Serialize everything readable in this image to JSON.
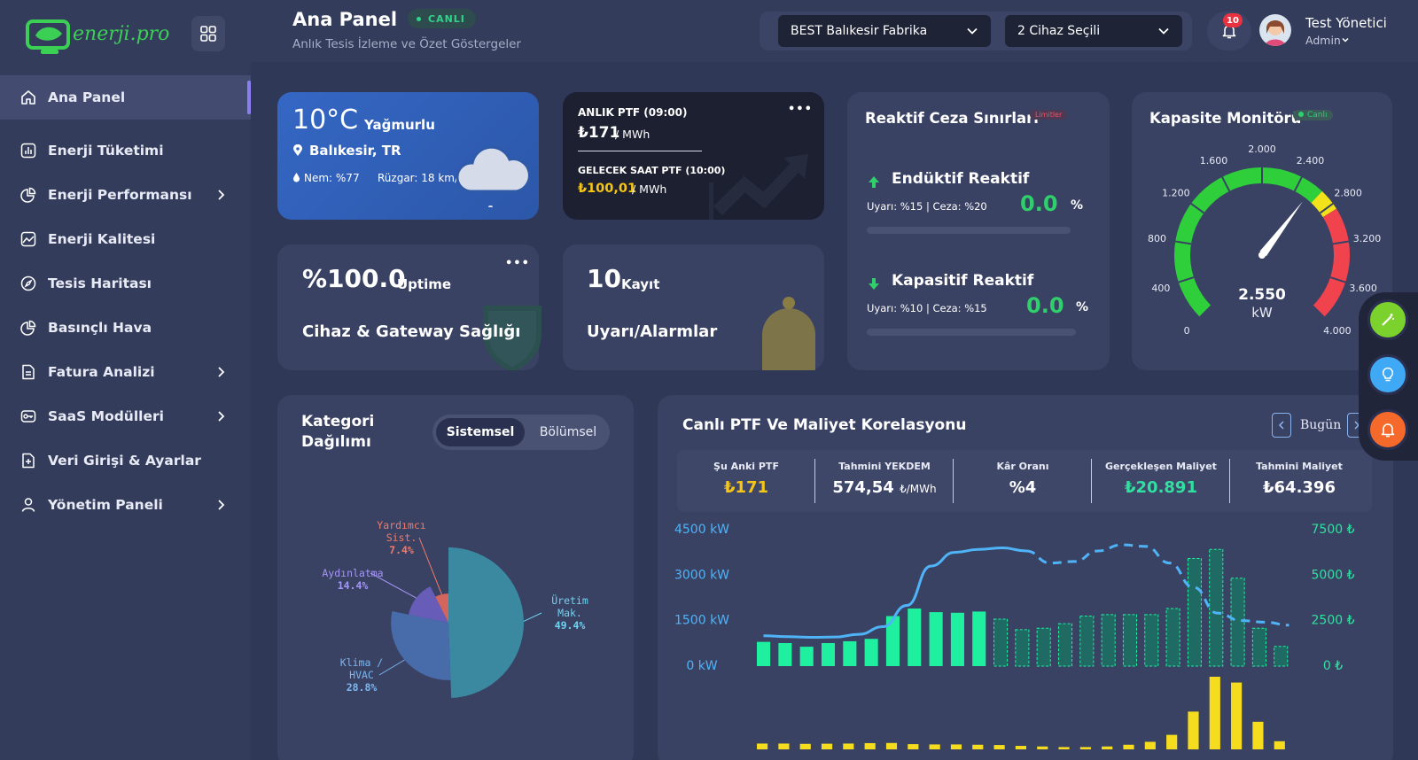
{
  "sidebar": {
    "logo_text": "enerji.pro",
    "items": [
      {
        "label": "Ana Panel",
        "icon": "home-icon",
        "active": true
      },
      {
        "label": "Enerji Tüketimi",
        "icon": "bar-chart-icon"
      },
      {
        "label": "Enerji Performansı",
        "icon": "pie-icon",
        "has_children": true
      },
      {
        "label": "Enerji Kalitesi",
        "icon": "image-chart-icon"
      },
      {
        "label": "Tesis Haritası",
        "icon": "compass-icon"
      },
      {
        "label": "Basınçlı Hava",
        "icon": "pie-icon"
      },
      {
        "label": "Fatura Analizi",
        "icon": "document-icon",
        "has_children": true
      },
      {
        "label": "SaaS Modülleri",
        "icon": "key-icon",
        "has_children": true
      },
      {
        "label": "Veri Girişi & Ayarlar",
        "icon": "file-plus-icon"
      },
      {
        "label": "Yönetim Paneli",
        "icon": "user-icon",
        "has_children": true
      }
    ]
  },
  "header": {
    "title": "Ana Panel",
    "badge": "CANLI",
    "subtitle": "Anlık Tesis İzleme ve Özet Göstergeler",
    "facility_select": "BEST Balıkesir Fabrika",
    "device_select": "2 Cihaz Seçili",
    "notification_count": "10",
    "user_name": "Test Yönetici",
    "user_role": "Admin"
  },
  "weather": {
    "temp": "10°C",
    "condition": "Yağmurlu",
    "location": "Balıkesir, TR",
    "humidity": "Nem: %77",
    "wind": "Rüzgar: 18 km/s"
  },
  "ptf": {
    "now_label": "ANLIK PTF (09:00)",
    "now_value": "₺171",
    "now_unit": "/ MWh",
    "next_label": "GELECEK SAAT PTF (10:00)",
    "next_value": "₺100,01",
    "next_unit": "/ MWh",
    "menu": "•••"
  },
  "reactive": {
    "title": "Reaktif Ceza Sınırları",
    "badge": "Limitler",
    "inductive": {
      "title": "Endüktif Reaktif",
      "limits": "Uyarı: %15 | Ceza: %20",
      "value": "0.0",
      "unit": "%",
      "fraction": 0
    },
    "capacitive": {
      "title": "Kapasitif Reaktif",
      "limits": "Uyarı: %10 | Ceza: %15",
      "value": "0.0",
      "unit": "%",
      "fraction": 0
    }
  },
  "capacity": {
    "title": "Kapasite Monitörü",
    "badge": "Canlı",
    "value": "2.550",
    "unit": "kW",
    "value_num": 2550,
    "max": 4000,
    "ticks": [
      "0",
      "400",
      "800",
      "1.200",
      "1.600",
      "2.000",
      "2.400",
      "2.800",
      "3.200",
      "3.600",
      "4.000"
    ],
    "colors": {
      "green": "#2fcf3b",
      "yellow": "#f2e21a",
      "red": "#f0434d"
    }
  },
  "uptime": {
    "value": "%100.0",
    "unit": "Uptime",
    "label": "Cihaz & Gateway Sağlığı",
    "menu": "•••"
  },
  "alarms": {
    "value": "10",
    "unit": "Kayıt",
    "label": "Uyarı/Alarmlar"
  },
  "category": {
    "title_line1": "Kategori",
    "title_line2": "Dağılımı",
    "tab_active": "Sistemsel",
    "tab_inactive": "Bölümsel",
    "slices": [
      {
        "label_lines": [
          "Üretim",
          "Mak."
        ],
        "pct": "49.4%",
        "value": 49.4,
        "color": "#3b8fa6",
        "label_color": "#6ed3f0"
      },
      {
        "label_lines": [
          "Klima /",
          "HVAC"
        ],
        "pct": "28.8%",
        "value": 28.8,
        "color": "#4a6fb0",
        "label_color": "#7ab6ef"
      },
      {
        "label_lines": [
          "Aydınlatma"
        ],
        "pct": "14.4%",
        "value": 14.4,
        "color": "#6b5fbf",
        "label_color": "#a496f5"
      },
      {
        "label_lines": [
          "Yardımcı",
          "Sist."
        ],
        "pct": "7.4%",
        "value": 7.4,
        "color": "#e0685c",
        "label_color": "#f07a6a"
      }
    ]
  },
  "correlation": {
    "title": "Canlı PTF Ve Maliyet Korelasyonu",
    "period": "Bugün",
    "kpis": [
      {
        "label": "Şu Anki PTF",
        "value": "₺171",
        "unit": "",
        "color": "#f5c518"
      },
      {
        "label": "Tahmini YEKDEM",
        "value": "574,54",
        "unit": "₺/MWh",
        "color": "#ffffff"
      },
      {
        "label": "Kâr Oranı",
        "value": "%4",
        "unit": "",
        "color": "#ffffff"
      },
      {
        "label": "Gerçekleşen Maliyet",
        "value": "₺20.891",
        "unit": "",
        "color": "#2fe0a0"
      },
      {
        "label": "Tahmini Maliyet",
        "value": "₺64.396",
        "unit": "",
        "color": "#ffffff"
      }
    ]
  },
  "chart_data": {
    "type": "bar",
    "yaxis_left_ticks": [
      "4500 kW",
      "3000 kW",
      "1500 kW",
      "0 kW"
    ],
    "yaxis_right_ticks": [
      "7500 ₺",
      "5000 ₺",
      "2500 ₺",
      "0 ₺"
    ],
    "ylim_left": [
      0,
      4500
    ],
    "ylim_right": [
      0,
      7500
    ],
    "actual_consumption_kw": [
      800,
      760,
      640,
      760,
      820,
      900,
      1650,
      1900,
      1780,
      1760,
      1800
    ],
    "forecast_consumption_kw": [
      1550,
      1200,
      1250,
      1400,
      1650,
      1700,
      1700,
      1700,
      1900,
      3550,
      3850,
      2900,
      1250,
      650
    ],
    "consumption_line_kw": [
      1000,
      970,
      950,
      960,
      1050,
      1300,
      2000,
      3300,
      3750,
      3850,
      3900,
      3800,
      3400,
      3450,
      3800,
      4000,
      3950,
      3400,
      2600,
      1750,
      1500,
      1450,
      1350
    ],
    "cost_bars_try": [
      200,
      200,
      190,
      195,
      200,
      215,
      220,
      180,
      170,
      170,
      160,
      150,
      120,
      100,
      80,
      80,
      100,
      160,
      260,
      500,
      1300,
      2500,
      2300,
      950,
      280
    ],
    "forecast_from_index": 11,
    "grid": false
  }
}
